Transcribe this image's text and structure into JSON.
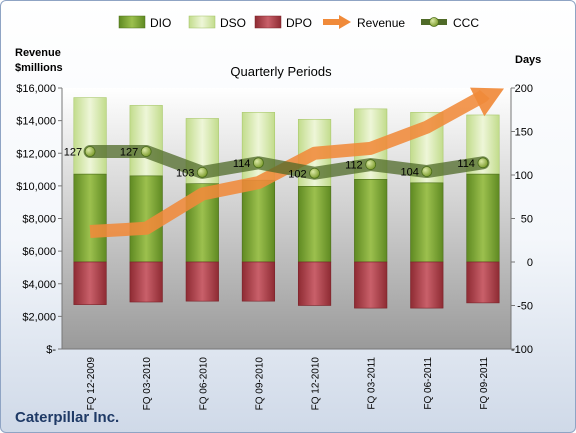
{
  "chart_data": {
    "type": "bar",
    "title": "Quarterly Periods",
    "company": "Caterpillar Inc.",
    "y_left_label_line1": "Revenue",
    "y_left_label_line2": "$millions",
    "y_right_label": "Days",
    "y_left_ticks": [
      "$-",
      "$2,000",
      "$4,000",
      "$6,000",
      "$8,000",
      "$10,000",
      "$12,000",
      "$14,000",
      "$16,000"
    ],
    "y_right_ticks": [
      "-100",
      "-50",
      "0",
      "50",
      "100",
      "150",
      "200"
    ],
    "ylim_left": [
      0,
      16000
    ],
    "ylim_right": [
      -100,
      200
    ],
    "categories": [
      "FQ 12-2009",
      "FQ 03-2010",
      "FQ 06-2010",
      "FQ 09-2010",
      "FQ 12-2010",
      "FQ 03-2011",
      "FQ 06-2011",
      "FQ 09-2011"
    ],
    "series": [
      {
        "name": "DIO",
        "axis": "right",
        "kind": "stacked-bar",
        "color": "#7fa33a",
        "values": [
          101,
          99,
          90,
          94,
          87,
          95,
          91,
          101
        ]
      },
      {
        "name": "DSO",
        "axis": "right",
        "kind": "stacked-bar",
        "color": "#d9ebb0",
        "values": [
          88,
          81,
          75,
          78,
          77,
          81,
          81,
          68
        ]
      },
      {
        "name": "DPO",
        "axis": "right",
        "kind": "negative-bar",
        "color": "#b3454d",
        "values": [
          -49,
          -46,
          -45,
          -45,
          -50,
          -53,
          -53,
          -47
        ]
      },
      {
        "name": "Revenue",
        "axis": "left",
        "kind": "arrow-line",
        "color": "#f08a3a",
        "values": [
          7200,
          7400,
          9500,
          10200,
          12000,
          12300,
          13600,
          15500
        ]
      },
      {
        "name": "CCC",
        "axis": "right",
        "kind": "line",
        "color": "#4f6a28",
        "values": [
          127,
          127,
          103,
          114,
          102,
          112,
          104,
          114
        ],
        "labels": [
          "127",
          "127",
          "103",
          "114",
          "102",
          "112",
          "104",
          "114"
        ]
      }
    ],
    "legend_position": "top",
    "grid": false
  }
}
